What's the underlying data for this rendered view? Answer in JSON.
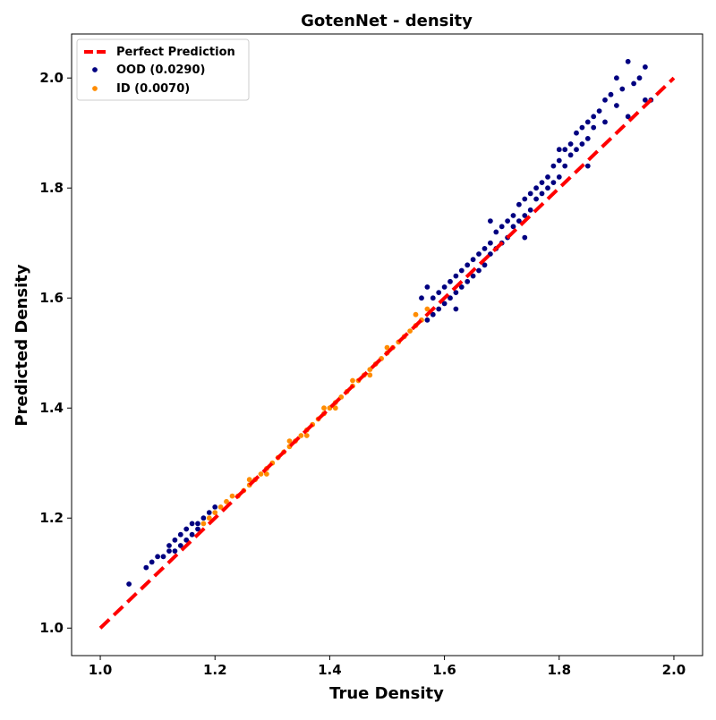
{
  "chart_data": {
    "type": "scatter",
    "title": "GotenNet - density",
    "xlabel": "True Density",
    "ylabel": "Predicted Density",
    "xlim": [
      0.95,
      2.05
    ],
    "ylim": [
      0.95,
      2.08
    ],
    "xticks": [
      "1.0",
      "1.2",
      "1.4",
      "1.6",
      "1.8",
      "2.0"
    ],
    "yticks": [
      "1.0",
      "1.2",
      "1.4",
      "1.6",
      "1.8",
      "2.0"
    ],
    "grid": false,
    "legend_position": "top-left",
    "reference_line": {
      "name": "Perfect Prediction",
      "x": [
        1.0,
        2.0
      ],
      "y": [
        1.0,
        2.0
      ],
      "color": "#ff0000",
      "style": "dashed"
    },
    "series": [
      {
        "name": "OOD (0.0290)",
        "color": "#000080",
        "points": [
          [
            1.05,
            1.08
          ],
          [
            1.08,
            1.11
          ],
          [
            1.09,
            1.12
          ],
          [
            1.1,
            1.13
          ],
          [
            1.11,
            1.13
          ],
          [
            1.12,
            1.14
          ],
          [
            1.12,
            1.15
          ],
          [
            1.13,
            1.14
          ],
          [
            1.13,
            1.16
          ],
          [
            1.14,
            1.15
          ],
          [
            1.14,
            1.17
          ],
          [
            1.15,
            1.16
          ],
          [
            1.15,
            1.18
          ],
          [
            1.16,
            1.17
          ],
          [
            1.16,
            1.19
          ],
          [
            1.17,
            1.18
          ],
          [
            1.17,
            1.19
          ],
          [
            1.18,
            1.19
          ],
          [
            1.18,
            1.2
          ],
          [
            1.19,
            1.2
          ],
          [
            1.19,
            1.21
          ],
          [
            1.2,
            1.21
          ],
          [
            1.2,
            1.22
          ],
          [
            1.57,
            1.56
          ],
          [
            1.58,
            1.57
          ],
          [
            1.58,
            1.6
          ],
          [
            1.59,
            1.58
          ],
          [
            1.59,
            1.61
          ],
          [
            1.6,
            1.59
          ],
          [
            1.6,
            1.62
          ],
          [
            1.61,
            1.6
          ],
          [
            1.61,
            1.63
          ],
          [
            1.62,
            1.61
          ],
          [
            1.62,
            1.64
          ],
          [
            1.63,
            1.62
          ],
          [
            1.63,
            1.65
          ],
          [
            1.64,
            1.63
          ],
          [
            1.64,
            1.66
          ],
          [
            1.65,
            1.64
          ],
          [
            1.65,
            1.67
          ],
          [
            1.66,
            1.65
          ],
          [
            1.66,
            1.68
          ],
          [
            1.67,
            1.66
          ],
          [
            1.67,
            1.69
          ],
          [
            1.68,
            1.68
          ],
          [
            1.68,
            1.7
          ],
          [
            1.69,
            1.69
          ],
          [
            1.69,
            1.72
          ],
          [
            1.7,
            1.7
          ],
          [
            1.7,
            1.73
          ],
          [
            1.71,
            1.71
          ],
          [
            1.71,
            1.74
          ],
          [
            1.72,
            1.73
          ],
          [
            1.72,
            1.75
          ],
          [
            1.73,
            1.74
          ],
          [
            1.73,
            1.77
          ],
          [
            1.74,
            1.75
          ],
          [
            1.74,
            1.78
          ],
          [
            1.75,
            1.76
          ],
          [
            1.75,
            1.79
          ],
          [
            1.76,
            1.78
          ],
          [
            1.76,
            1.8
          ],
          [
            1.77,
            1.79
          ],
          [
            1.77,
            1.81
          ],
          [
            1.78,
            1.8
          ],
          [
            1.78,
            1.82
          ],
          [
            1.79,
            1.81
          ],
          [
            1.79,
            1.84
          ],
          [
            1.8,
            1.82
          ],
          [
            1.8,
            1.85
          ],
          [
            1.81,
            1.84
          ],
          [
            1.81,
            1.87
          ],
          [
            1.82,
            1.86
          ],
          [
            1.82,
            1.88
          ],
          [
            1.83,
            1.87
          ],
          [
            1.83,
            1.9
          ],
          [
            1.84,
            1.88
          ],
          [
            1.84,
            1.91
          ],
          [
            1.85,
            1.89
          ],
          [
            1.85,
            1.92
          ],
          [
            1.86,
            1.91
          ],
          [
            1.86,
            1.93
          ],
          [
            1.87,
            1.94
          ],
          [
            1.88,
            1.92
          ],
          [
            1.88,
            1.96
          ],
          [
            1.89,
            1.97
          ],
          [
            1.9,
            1.95
          ],
          [
            1.9,
            2.0
          ],
          [
            1.91,
            1.98
          ],
          [
            1.92,
            2.03
          ],
          [
            1.92,
            1.93
          ],
          [
            1.93,
            1.99
          ],
          [
            1.94,
            2.0
          ],
          [
            1.95,
            2.02
          ],
          [
            1.95,
            1.96
          ],
          [
            1.96,
            1.96
          ],
          [
            1.56,
            1.6
          ],
          [
            1.62,
            1.58
          ],
          [
            1.68,
            1.74
          ],
          [
            1.74,
            1.71
          ],
          [
            1.8,
            1.87
          ],
          [
            1.85,
            1.84
          ],
          [
            1.57,
            1.62
          ]
        ]
      },
      {
        "name": "ID (0.0070)",
        "color": "#ff8c00",
        "points": [
          [
            1.18,
            1.19
          ],
          [
            1.19,
            1.2
          ],
          [
            1.2,
            1.21
          ],
          [
            1.21,
            1.22
          ],
          [
            1.22,
            1.23
          ],
          [
            1.23,
            1.24
          ],
          [
            1.24,
            1.24
          ],
          [
            1.25,
            1.25
          ],
          [
            1.26,
            1.26
          ],
          [
            1.27,
            1.27
          ],
          [
            1.28,
            1.28
          ],
          [
            1.29,
            1.29
          ],
          [
            1.3,
            1.3
          ],
          [
            1.31,
            1.31
          ],
          [
            1.32,
            1.32
          ],
          [
            1.33,
            1.33
          ],
          [
            1.34,
            1.34
          ],
          [
            1.35,
            1.35
          ],
          [
            1.36,
            1.36
          ],
          [
            1.37,
            1.37
          ],
          [
            1.38,
            1.38
          ],
          [
            1.39,
            1.39
          ],
          [
            1.4,
            1.4
          ],
          [
            1.41,
            1.41
          ],
          [
            1.42,
            1.42
          ],
          [
            1.43,
            1.43
          ],
          [
            1.44,
            1.44
          ],
          [
            1.45,
            1.45
          ],
          [
            1.46,
            1.46
          ],
          [
            1.47,
            1.47
          ],
          [
            1.48,
            1.48
          ],
          [
            1.49,
            1.49
          ],
          [
            1.5,
            1.5
          ],
          [
            1.51,
            1.51
          ],
          [
            1.52,
            1.52
          ],
          [
            1.53,
            1.53
          ],
          [
            1.54,
            1.54
          ],
          [
            1.55,
            1.55
          ],
          [
            1.56,
            1.56
          ],
          [
            1.57,
            1.58
          ],
          [
            1.26,
            1.27
          ],
          [
            1.29,
            1.28
          ],
          [
            1.33,
            1.34
          ],
          [
            1.36,
            1.35
          ],
          [
            1.39,
            1.4
          ],
          [
            1.41,
            1.4
          ],
          [
            1.44,
            1.45
          ],
          [
            1.47,
            1.46
          ],
          [
            1.5,
            1.51
          ],
          [
            1.55,
            1.57
          ]
        ]
      }
    ]
  }
}
